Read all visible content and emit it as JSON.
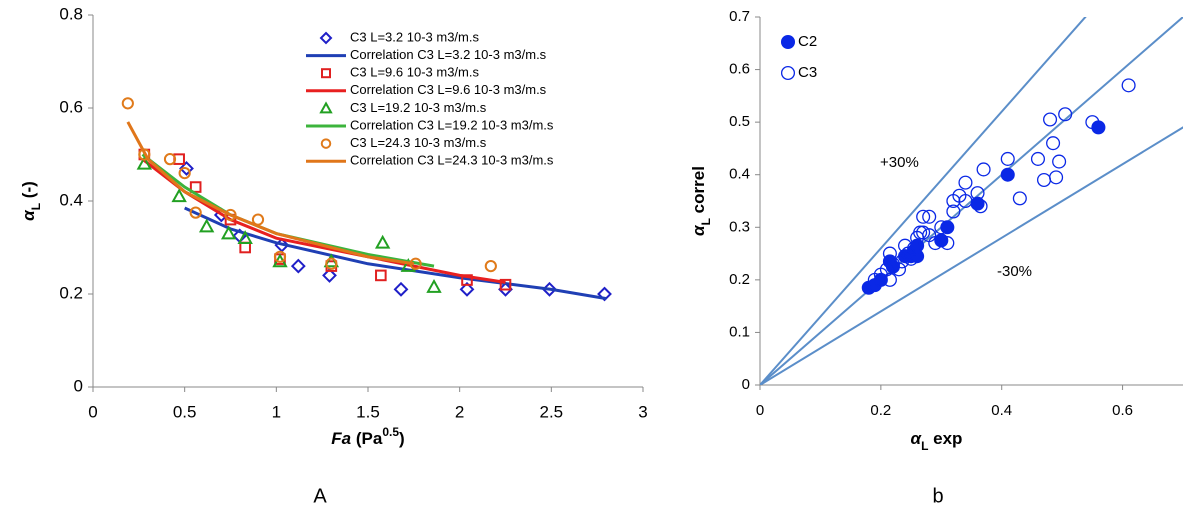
{
  "chart_data": [
    {
      "type": "scatter",
      "panel_label": "A",
      "xlabel": [
        {
          "text": "Fa",
          "style": "italic"
        },
        {
          "text": " (Pa"
        },
        {
          "text": "0.5",
          "shift": "super"
        },
        {
          "text": ")"
        }
      ],
      "ylabel": [
        {
          "text": "α",
          "style": "italic"
        },
        {
          "text": "L",
          "shift": "sub"
        },
        {
          "text": " (-)"
        }
      ],
      "xlim": [
        0,
        3
      ],
      "xticks": [
        0,
        0.5,
        1,
        1.5,
        2,
        2.5,
        3
      ],
      "ylim": [
        0,
        0.8
      ],
      "yticks": [
        0,
        0.2,
        0.4,
        0.6,
        0.8
      ],
      "grid": false,
      "legend": "top-right",
      "series": [
        {
          "name": "C3 L=3.2 10-3 m3/m.s",
          "color": "#1f1fc8",
          "style": "markers",
          "marker": "diamond",
          "filled": false,
          "x": [
            0.51,
            0.7,
            0.8,
            1.03,
            1.12,
            1.29,
            1.68,
            2.04,
            2.25,
            2.49,
            2.79
          ],
          "values": [
            0.47,
            0.37,
            0.325,
            0.305,
            0.26,
            0.24,
            0.21,
            0.21,
            0.21,
            0.21,
            0.2
          ]
        },
        {
          "name": "Correlation C3 L=3.2 10-3 m3/m.s",
          "color": "#1f3fb4",
          "style": "line",
          "x": [
            0.5,
            0.75,
            1,
            1.5,
            2,
            2.5,
            2.8
          ],
          "values": [
            0.385,
            0.34,
            0.31,
            0.265,
            0.235,
            0.21,
            0.19
          ]
        },
        {
          "name": "C3 L=9.6 10-3 m3/m.s",
          "color": "#e02020",
          "style": "markers",
          "marker": "square",
          "filled": false,
          "x": [
            0.28,
            0.47,
            0.56,
            0.75,
            0.83,
            1.02,
            1.3,
            1.57,
            2.04,
            2.25
          ],
          "values": [
            0.5,
            0.49,
            0.43,
            0.36,
            0.3,
            0.275,
            0.26,
            0.24,
            0.23,
            0.22
          ]
        },
        {
          "name": "Correlation C3 L=9.6 10-3 m3/m.s",
          "color": "#e82020",
          "style": "line",
          "x": [
            0.27,
            0.5,
            0.75,
            1,
            1.5,
            2,
            2.25
          ],
          "values": [
            0.49,
            0.42,
            0.36,
            0.32,
            0.28,
            0.24,
            0.225
          ]
        },
        {
          "name": "C3 L=19.2 10-3 m3/m.s",
          "color": "#22a022",
          "style": "markers",
          "marker": "triangle",
          "filled": false,
          "x": [
            0.28,
            0.47,
            0.62,
            0.74,
            0.83,
            1.02,
            1.3,
            1.58,
            1.72,
            1.86
          ],
          "values": [
            0.48,
            0.41,
            0.345,
            0.33,
            0.32,
            0.27,
            0.27,
            0.31,
            0.26,
            0.215
          ]
        },
        {
          "name": "Correlation C3 L=19.2 10-3 m3/m.s",
          "color": "#3cb43c",
          "style": "line",
          "x": [
            0.27,
            0.5,
            0.75,
            1,
            1.5,
            1.86
          ],
          "values": [
            0.5,
            0.43,
            0.37,
            0.33,
            0.285,
            0.26
          ]
        },
        {
          "name": "C3 L=24.3 10-3 m3/m.s",
          "color": "#e07a1a",
          "style": "markers",
          "marker": "circle",
          "filled": false,
          "x": [
            0.19,
            0.28,
            0.42,
            0.5,
            0.56,
            0.75,
            0.9,
            1.02,
            1.3,
            1.76,
            2.17
          ],
          "values": [
            0.61,
            0.5,
            0.49,
            0.46,
            0.375,
            0.37,
            0.36,
            0.28,
            0.265,
            0.265,
            0.26
          ]
        },
        {
          "name": "Correlation C3 L=24.3 10-3 m3/m.s",
          "color": "#e0761a",
          "style": "line",
          "x": [
            0.19,
            0.3,
            0.5,
            0.75,
            1,
            1.5,
            1.75
          ],
          "values": [
            0.57,
            0.49,
            0.42,
            0.37,
            0.33,
            0.28,
            0.265
          ]
        }
      ]
    },
    {
      "type": "scatter",
      "panel_label": "b",
      "xlabel": [
        {
          "text": "α",
          "style": "italic"
        },
        {
          "text": "L",
          "shift": "sub"
        },
        {
          "text": " exp"
        }
      ],
      "ylabel": [
        {
          "text": "α",
          "style": "italic"
        },
        {
          "text": "L",
          "shift": "sub"
        },
        {
          "text": " correl"
        }
      ],
      "xlim": [
        0,
        0.7
      ],
      "xticks": [
        0,
        0.2,
        0.4,
        0.6
      ],
      "ylim": [
        0,
        0.7
      ],
      "yticks": [
        0,
        0.1,
        0.2,
        0.3,
        0.4,
        0.5,
        0.6,
        0.7
      ],
      "grid": false,
      "legend": "top-left",
      "reference_lines": [
        {
          "slope": 1.3,
          "color": "#5b8ec9"
        },
        {
          "slope": 1,
          "color": "#5b8ec9"
        },
        {
          "slope": 0.7,
          "color": "#5b8ec9"
        }
      ],
      "annotations": [
        "+30%",
        "-30%"
      ],
      "series": [
        {
          "name": "C2",
          "color": "#0a28e6",
          "style": "markers",
          "marker": "circle",
          "filled": true,
          "x": [
            0.18,
            0.19,
            0.2,
            0.215,
            0.22,
            0.24,
            0.25,
            0.255,
            0.26,
            0.26,
            0.3,
            0.31,
            0.36,
            0.41,
            0.56
          ],
          "values": [
            0.185,
            0.19,
            0.2,
            0.235,
            0.225,
            0.245,
            0.245,
            0.255,
            0.265,
            0.245,
            0.275,
            0.3,
            0.345,
            0.4,
            0.49
          ]
        },
        {
          "name": "C3",
          "color": "#0a28e6",
          "style": "markers",
          "marker": "circle",
          "filled": false,
          "x": [
            0.19,
            0.2,
            0.21,
            0.215,
            0.215,
            0.22,
            0.23,
            0.235,
            0.24,
            0.245,
            0.25,
            0.255,
            0.26,
            0.265,
            0.27,
            0.27,
            0.28,
            0.28,
            0.29,
            0.3,
            0.31,
            0.32,
            0.32,
            0.33,
            0.34,
            0.34,
            0.36,
            0.365,
            0.37,
            0.41,
            0.43,
            0.46,
            0.47,
            0.48,
            0.485,
            0.49,
            0.495,
            0.505,
            0.55,
            0.61
          ],
          "values": [
            0.2,
            0.21,
            0.22,
            0.25,
            0.2,
            0.23,
            0.22,
            0.235,
            0.265,
            0.25,
            0.24,
            0.26,
            0.28,
            0.29,
            0.32,
            0.29,
            0.32,
            0.285,
            0.27,
            0.3,
            0.27,
            0.35,
            0.33,
            0.36,
            0.35,
            0.385,
            0.365,
            0.34,
            0.41,
            0.43,
            0.355,
            0.43,
            0.39,
            0.505,
            0.46,
            0.395,
            0.425,
            0.515,
            0.5,
            0.57
          ]
        }
      ]
    }
  ]
}
